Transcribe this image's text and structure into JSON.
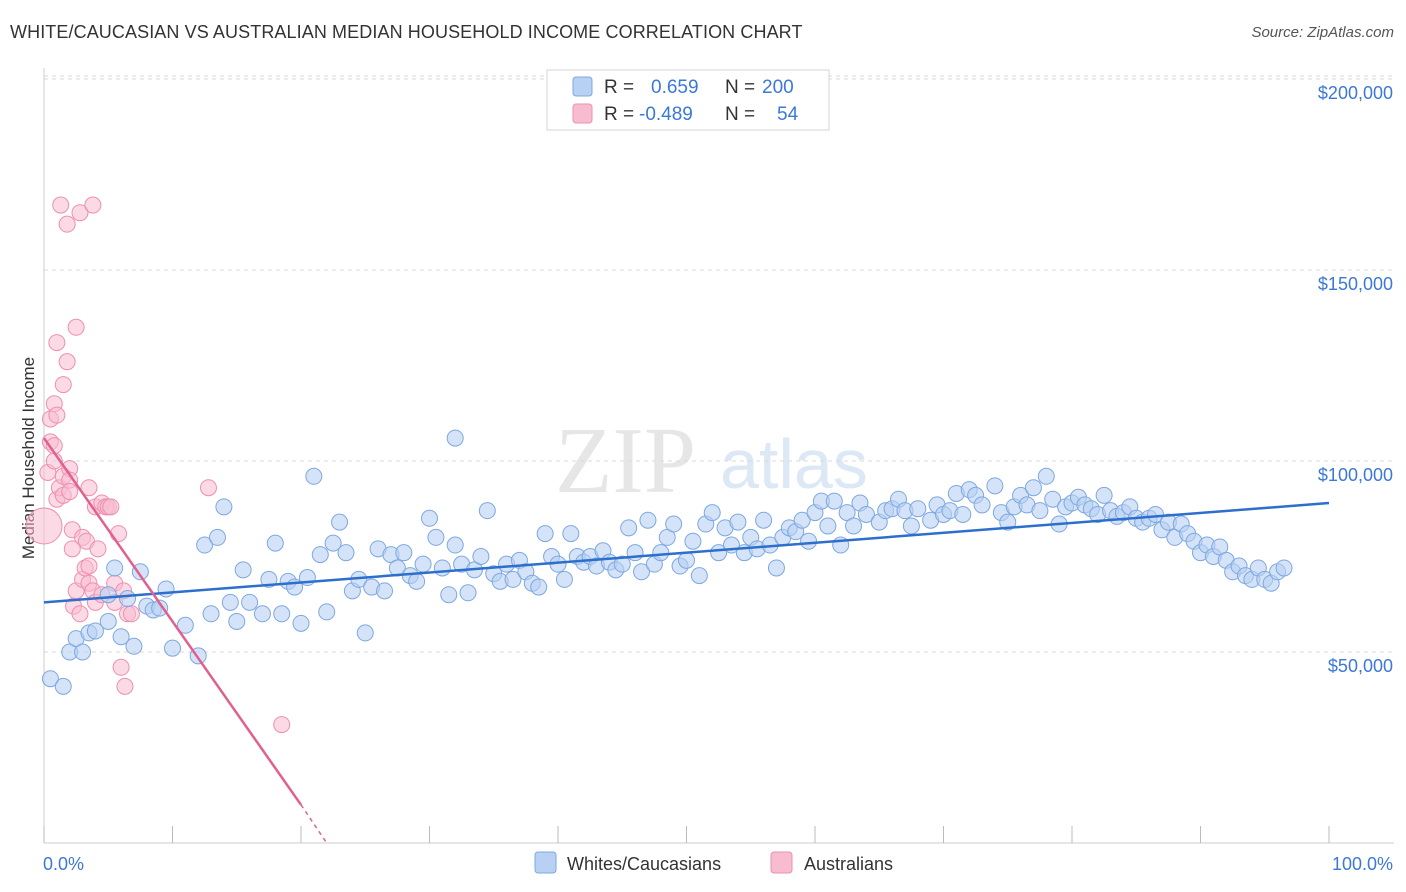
{
  "header": {
    "title": "WHITE/CAUCASIAN VS AUSTRALIAN MEDIAN HOUSEHOLD INCOME CORRELATION CHART",
    "source": "Source: ZipAtlas.com"
  },
  "watermark": {
    "zip": "ZIP",
    "atlas": "atlas"
  },
  "colors": {
    "blue_fill": "#b8d0f2",
    "blue_stroke": "#7ea8e0",
    "blue_line": "#2c6fcc",
    "pink_fill": "#f7bcd0",
    "pink_stroke": "#ee8fb0",
    "pink_line": "#e0608f",
    "value_text": "#3b78d8",
    "grid": "#d9d9d9"
  },
  "legend": {
    "rows": [
      {
        "r_label": "R =",
        "r_value": "0.659",
        "n_label": "N =",
        "n_value": "200"
      },
      {
        "r_label": "R =",
        "r_value": "-0.489",
        "n_label": "N =",
        "n_value": "54"
      }
    ]
  },
  "chart_data": {
    "type": "scatter",
    "title": "WHITE/CAUCASIAN VS AUSTRALIAN MEDIAN HOUSEHOLD INCOME CORRELATION CHART",
    "xlabel": "",
    "ylabel": "Median Household Income",
    "xlim": [
      0,
      100
    ],
    "ylim": [
      0,
      205000
    ],
    "x_tick_labels": [
      "0.0%",
      "100.0%"
    ],
    "y_ticks": [
      {
        "value": 50000,
        "label": "$50,000"
      },
      {
        "value": 100000,
        "label": "$100,000"
      },
      {
        "value": 150000,
        "label": "$150,000"
      },
      {
        "value": 200000,
        "label": "$200,000"
      }
    ],
    "legend_position": "top-center",
    "series": [
      {
        "name": "Whites/Caucasians",
        "r": 0.659,
        "n": 200,
        "trend": {
          "x": [
            0,
            100
          ],
          "y": [
            63000,
            89000
          ]
        },
        "points": [
          [
            0.5,
            43000
          ],
          [
            1.5,
            41000
          ],
          [
            2,
            50000
          ],
          [
            2.5,
            53500
          ],
          [
            3,
            50000
          ],
          [
            3.5,
            55000
          ],
          [
            4,
            55500
          ],
          [
            5,
            65000
          ],
          [
            5,
            58000
          ],
          [
            5.5,
            72000
          ],
          [
            6,
            54000
          ],
          [
            6.5,
            64000
          ],
          [
            7,
            51500
          ],
          [
            7.5,
            71000
          ],
          [
            8,
            62000
          ],
          [
            8.5,
            61000
          ],
          [
            9,
            61500
          ],
          [
            9.5,
            66500
          ],
          [
            10,
            51000
          ],
          [
            11,
            57000
          ],
          [
            12,
            49000
          ],
          [
            12.5,
            78000
          ],
          [
            13,
            60000
          ],
          [
            13.5,
            80000
          ],
          [
            14,
            88000
          ],
          [
            14.5,
            63000
          ],
          [
            15,
            58000
          ],
          [
            15.5,
            71500
          ],
          [
            16,
            63000
          ],
          [
            17,
            60000
          ],
          [
            17.5,
            69000
          ],
          [
            18,
            78500
          ],
          [
            18.5,
            60000
          ],
          [
            19,
            68500
          ],
          [
            19.5,
            67000
          ],
          [
            20,
            57500
          ],
          [
            20.5,
            69500
          ],
          [
            21,
            96000
          ],
          [
            21.5,
            75500
          ],
          [
            22,
            60500
          ],
          [
            22.5,
            78500
          ],
          [
            23,
            84000
          ],
          [
            23.5,
            76000
          ],
          [
            24,
            66000
          ],
          [
            24.5,
            69000
          ],
          [
            25,
            55000
          ],
          [
            25.5,
            67000
          ],
          [
            26,
            77000
          ],
          [
            26.5,
            66000
          ],
          [
            27,
            75500
          ],
          [
            27.5,
            72000
          ],
          [
            28,
            76000
          ],
          [
            28.5,
            70000
          ],
          [
            29,
            68500
          ],
          [
            29.5,
            73000
          ],
          [
            30,
            85000
          ],
          [
            30.5,
            80000
          ],
          [
            31,
            72000
          ],
          [
            31.5,
            65000
          ],
          [
            32,
            78000
          ],
          [
            32,
            106000
          ],
          [
            32.5,
            73000
          ],
          [
            33,
            65500
          ],
          [
            33.5,
            71500
          ],
          [
            34,
            75000
          ],
          [
            34.5,
            87000
          ],
          [
            35,
            70500
          ],
          [
            35.5,
            68500
          ],
          [
            36,
            73000
          ],
          [
            36.5,
            69000
          ],
          [
            37,
            74000
          ],
          [
            37.5,
            71000
          ],
          [
            38,
            68000
          ],
          [
            38.5,
            67000
          ],
          [
            39,
            81000
          ],
          [
            39.5,
            75000
          ],
          [
            40,
            73000
          ],
          [
            40.5,
            69000
          ],
          [
            41,
            81000
          ],
          [
            41.5,
            75000
          ],
          [
            42,
            73500
          ],
          [
            42.5,
            75000
          ],
          [
            43,
            72500
          ],
          [
            43.5,
            76500
          ],
          [
            44,
            73500
          ],
          [
            44.5,
            71500
          ],
          [
            45,
            73000
          ],
          [
            45.5,
            82500
          ],
          [
            46,
            76000
          ],
          [
            46.5,
            71000
          ],
          [
            47,
            84500
          ],
          [
            47.5,
            73000
          ],
          [
            48,
            76000
          ],
          [
            48.5,
            80000
          ],
          [
            49,
            83500
          ],
          [
            49.5,
            72500
          ],
          [
            50,
            74000
          ],
          [
            50.5,
            79000
          ],
          [
            51,
            70000
          ],
          [
            51.5,
            83500
          ],
          [
            52,
            86500
          ],
          [
            52.5,
            76000
          ],
          [
            53,
            82500
          ],
          [
            53.5,
            78000
          ],
          [
            54,
            84000
          ],
          [
            54.5,
            76000
          ],
          [
            55,
            80000
          ],
          [
            55.5,
            77000
          ],
          [
            56,
            84500
          ],
          [
            56.5,
            78000
          ],
          [
            57,
            72000
          ],
          [
            57.5,
            80000
          ],
          [
            58,
            82500
          ],
          [
            58.5,
            81500
          ],
          [
            59,
            84500
          ],
          [
            59.5,
            79000
          ],
          [
            60,
            86500
          ],
          [
            60.5,
            89500
          ],
          [
            61,
            83000
          ],
          [
            61.5,
            89500
          ],
          [
            62,
            78000
          ],
          [
            62.5,
            86500
          ],
          [
            63,
            83000
          ],
          [
            63.5,
            89000
          ],
          [
            64,
            86000
          ],
          [
            65,
            84000
          ],
          [
            65.5,
            87000
          ],
          [
            66,
            87500
          ],
          [
            66.5,
            90000
          ],
          [
            67,
            87000
          ],
          [
            67.5,
            83000
          ],
          [
            68,
            87500
          ],
          [
            69,
            84500
          ],
          [
            69.5,
            88500
          ],
          [
            70,
            86000
          ],
          [
            70.5,
            87000
          ],
          [
            71,
            91500
          ],
          [
            71.5,
            86000
          ],
          [
            72,
            92500
          ],
          [
            72.5,
            91000
          ],
          [
            73,
            88500
          ],
          [
            74,
            93500
          ],
          [
            74.5,
            86500
          ],
          [
            75,
            84000
          ],
          [
            75.5,
            88000
          ],
          [
            76,
            91000
          ],
          [
            76.5,
            88500
          ],
          [
            77,
            93000
          ],
          [
            77.5,
            87000
          ],
          [
            78,
            96000
          ],
          [
            78.5,
            90000
          ],
          [
            79,
            83500
          ],
          [
            79.5,
            88000
          ],
          [
            80,
            89000
          ],
          [
            80.5,
            90500
          ],
          [
            81,
            88500
          ],
          [
            81.5,
            87500
          ],
          [
            82,
            86000
          ],
          [
            82.5,
            91000
          ],
          [
            83,
            87000
          ],
          [
            83.5,
            85500
          ],
          [
            84,
            86500
          ],
          [
            84.5,
            88000
          ],
          [
            85,
            85000
          ],
          [
            85.5,
            84000
          ],
          [
            86,
            85000
          ],
          [
            86.5,
            86000
          ],
          [
            87,
            82000
          ],
          [
            87.5,
            84000
          ],
          [
            88,
            80000
          ],
          [
            88.5,
            83500
          ],
          [
            89,
            81000
          ],
          [
            89.5,
            79000
          ],
          [
            90,
            76000
          ],
          [
            90.5,
            78000
          ],
          [
            91,
            75000
          ],
          [
            91.5,
            77500
          ],
          [
            92,
            74000
          ],
          [
            92.5,
            71000
          ],
          [
            93,
            72500
          ],
          [
            93.5,
            70000
          ],
          [
            94,
            69000
          ],
          [
            94.5,
            72000
          ],
          [
            95,
            69000
          ],
          [
            95.5,
            68000
          ],
          [
            96,
            71000
          ],
          [
            96.5,
            72000
          ]
        ]
      },
      {
        "name": "Australians",
        "r": -0.489,
        "n": 54,
        "trend": {
          "x": [
            0,
            20
          ],
          "y": [
            106000,
            10000
          ]
        },
        "trend_dashed": {
          "x": [
            20,
            22
          ],
          "y": [
            10000,
            0
          ]
        },
        "points": [
          [
            0,
            83000
          ],
          [
            0.3,
            97000
          ],
          [
            0.5,
            105000
          ],
          [
            0.5,
            111000
          ],
          [
            0.8,
            115000
          ],
          [
            0.8,
            104000
          ],
          [
            0.8,
            100000
          ],
          [
            1,
            131000
          ],
          [
            1,
            90000
          ],
          [
            1,
            112000
          ],
          [
            1.2,
            93000
          ],
          [
            1.3,
            167000
          ],
          [
            1.5,
            96000
          ],
          [
            1.5,
            120000
          ],
          [
            1.5,
            91000
          ],
          [
            1.8,
            162000
          ],
          [
            1.8,
            126000
          ],
          [
            2,
            98000
          ],
          [
            2,
            95000
          ],
          [
            2,
            92000
          ],
          [
            2.2,
            82000
          ],
          [
            2.2,
            77000
          ],
          [
            2.3,
            62000
          ],
          [
            2.5,
            66000
          ],
          [
            2.5,
            135000
          ],
          [
            2.8,
            60000
          ],
          [
            2.8,
            165000
          ],
          [
            3,
            80000
          ],
          [
            3,
            69000
          ],
          [
            3.2,
            72000
          ],
          [
            3.3,
            79000
          ],
          [
            3.5,
            93000
          ],
          [
            3.5,
            68000
          ],
          [
            3.5,
            72500
          ],
          [
            3.8,
            167000
          ],
          [
            3.8,
            66000
          ],
          [
            4,
            63000
          ],
          [
            4,
            88000
          ],
          [
            4.2,
            77000
          ],
          [
            4.5,
            89000
          ],
          [
            4.5,
            65000
          ],
          [
            4.8,
            88000
          ],
          [
            5,
            88000
          ],
          [
            5.2,
            88000
          ],
          [
            5.5,
            68000
          ],
          [
            5.5,
            63000
          ],
          [
            5.8,
            81000
          ],
          [
            6,
            46000
          ],
          [
            6.2,
            66000
          ],
          [
            6.3,
            41000
          ],
          [
            6.5,
            60000
          ],
          [
            6.8,
            60000
          ],
          [
            12.8,
            93000
          ],
          [
            18.5,
            31000
          ]
        ]
      }
    ]
  },
  "bottom_legend": {
    "items": [
      "Whites/Caucasians",
      "Australians"
    ]
  }
}
